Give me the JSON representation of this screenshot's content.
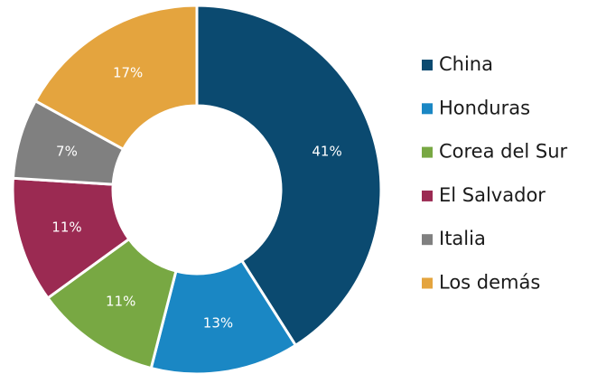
{
  "chart_data": {
    "type": "donut",
    "categories": [
      "China",
      "Honduras",
      "Corea del Sur",
      "El Salvador",
      "Italia",
      "Los demás"
    ],
    "values": [
      41,
      13,
      11,
      11,
      7,
      17
    ],
    "value_labels": [
      "41%",
      "13%",
      "11%",
      "11%",
      "7%",
      "17%"
    ],
    "colors": [
      "#0b4a70",
      "#1a87c4",
      "#78a843",
      "#9b2a52",
      "#808080",
      "#e4a43e"
    ],
    "legend": "right"
  }
}
